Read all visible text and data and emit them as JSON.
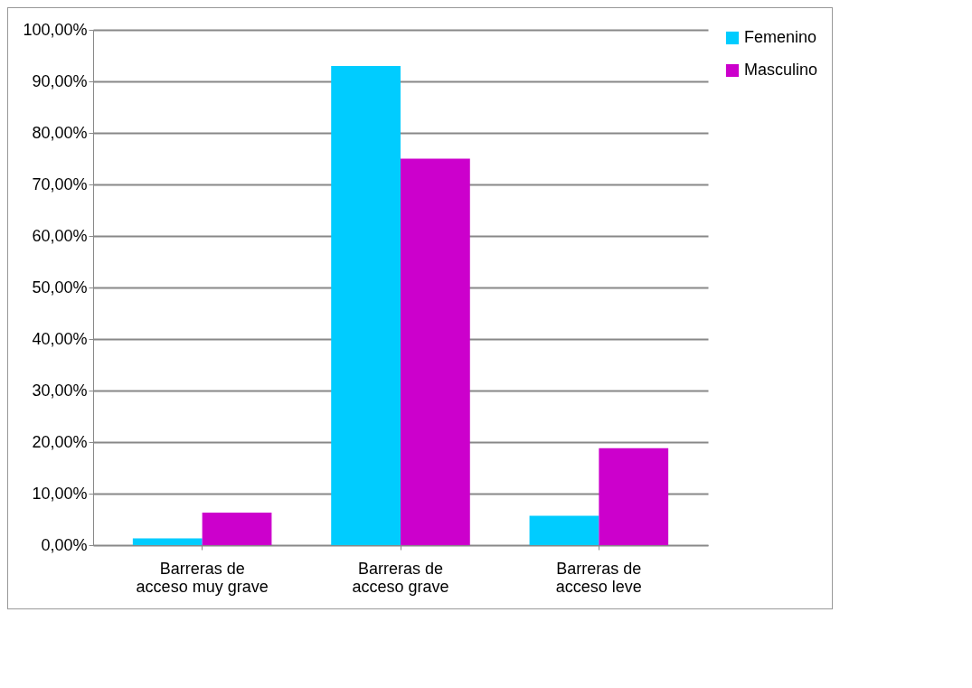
{
  "chart_data": {
    "type": "bar",
    "categories": [
      "Barreras de acceso muy grave",
      "Barreras de acceso grave",
      "Barreras de acceso leve"
    ],
    "series": [
      {
        "name": "Femenino",
        "color": "#00ccff",
        "values": [
          1.3,
          93,
          5.7
        ]
      },
      {
        "name": "Masculino",
        "color": "#cc00cc",
        "values": [
          6.3,
          75,
          18.8
        ]
      }
    ],
    "ylim": [
      0,
      100
    ],
    "yticks": [
      {
        "value": 0,
        "label": "0,00%"
      },
      {
        "value": 10,
        "label": "10,00%"
      },
      {
        "value": 20,
        "label": "20,00%"
      },
      {
        "value": 30,
        "label": "30,00%"
      },
      {
        "value": 40,
        "label": "40,00%"
      },
      {
        "value": 50,
        "label": "50,00%"
      },
      {
        "value": 60,
        "label": "60,00%"
      },
      {
        "value": 70,
        "label": "70,00%"
      },
      {
        "value": 80,
        "label": "80,00%"
      },
      {
        "value": 90,
        "label": "90,00%"
      },
      {
        "value": 100,
        "label": "100,00%"
      }
    ],
    "grid": "y",
    "legend": "right"
  }
}
